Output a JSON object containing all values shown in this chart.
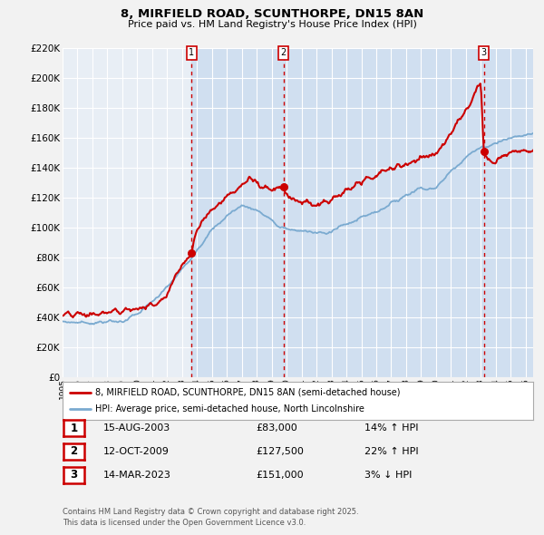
{
  "title_line1": "8, MIRFIELD ROAD, SCUNTHORPE, DN15 8AN",
  "title_line2": "Price paid vs. HM Land Registry's House Price Index (HPI)",
  "ylim": [
    0,
    220000
  ],
  "yticks": [
    0,
    20000,
    40000,
    60000,
    80000,
    100000,
    120000,
    140000,
    160000,
    180000,
    200000,
    220000
  ],
  "xlim_start": 1995.0,
  "xlim_end": 2026.5,
  "xtick_years": [
    1995,
    1996,
    1997,
    1998,
    1999,
    2000,
    2001,
    2002,
    2003,
    2004,
    2005,
    2006,
    2007,
    2008,
    2009,
    2010,
    2011,
    2012,
    2013,
    2014,
    2015,
    2016,
    2017,
    2018,
    2019,
    2020,
    2021,
    2022,
    2023,
    2024,
    2025,
    2026
  ],
  "sale_color": "#cc0000",
  "hpi_color": "#7aaad0",
  "sale_dot_color": "#cc0000",
  "vline_color": "#cc0000",
  "background_color": "#f2f2f2",
  "plot_bg_color": "#e8eef5",
  "grid_color": "#ffffff",
  "shade_color": "#d0dff0",
  "sale1_x": 2003.62,
  "sale1_y": 83000,
  "sale2_x": 2009.78,
  "sale2_y": 127500,
  "sale3_x": 2023.2,
  "sale3_y": 151000,
  "table_rows": [
    {
      "num": "1",
      "date": "15-AUG-2003",
      "price": "£83,000",
      "hpi": "14% ↑ HPI"
    },
    {
      "num": "2",
      "date": "12-OCT-2009",
      "price": "£127,500",
      "hpi": "22% ↑ HPI"
    },
    {
      "num": "3",
      "date": "14-MAR-2023",
      "price": "£151,000",
      "hpi": "3% ↓ HPI"
    }
  ],
  "legend_line1": "8, MIRFIELD ROAD, SCUNTHORPE, DN15 8AN (semi-detached house)",
  "legend_line2": "HPI: Average price, semi-detached house, North Lincolnshire",
  "footer": "Contains HM Land Registry data © Crown copyright and database right 2025.\nThis data is licensed under the Open Government Licence v3.0."
}
